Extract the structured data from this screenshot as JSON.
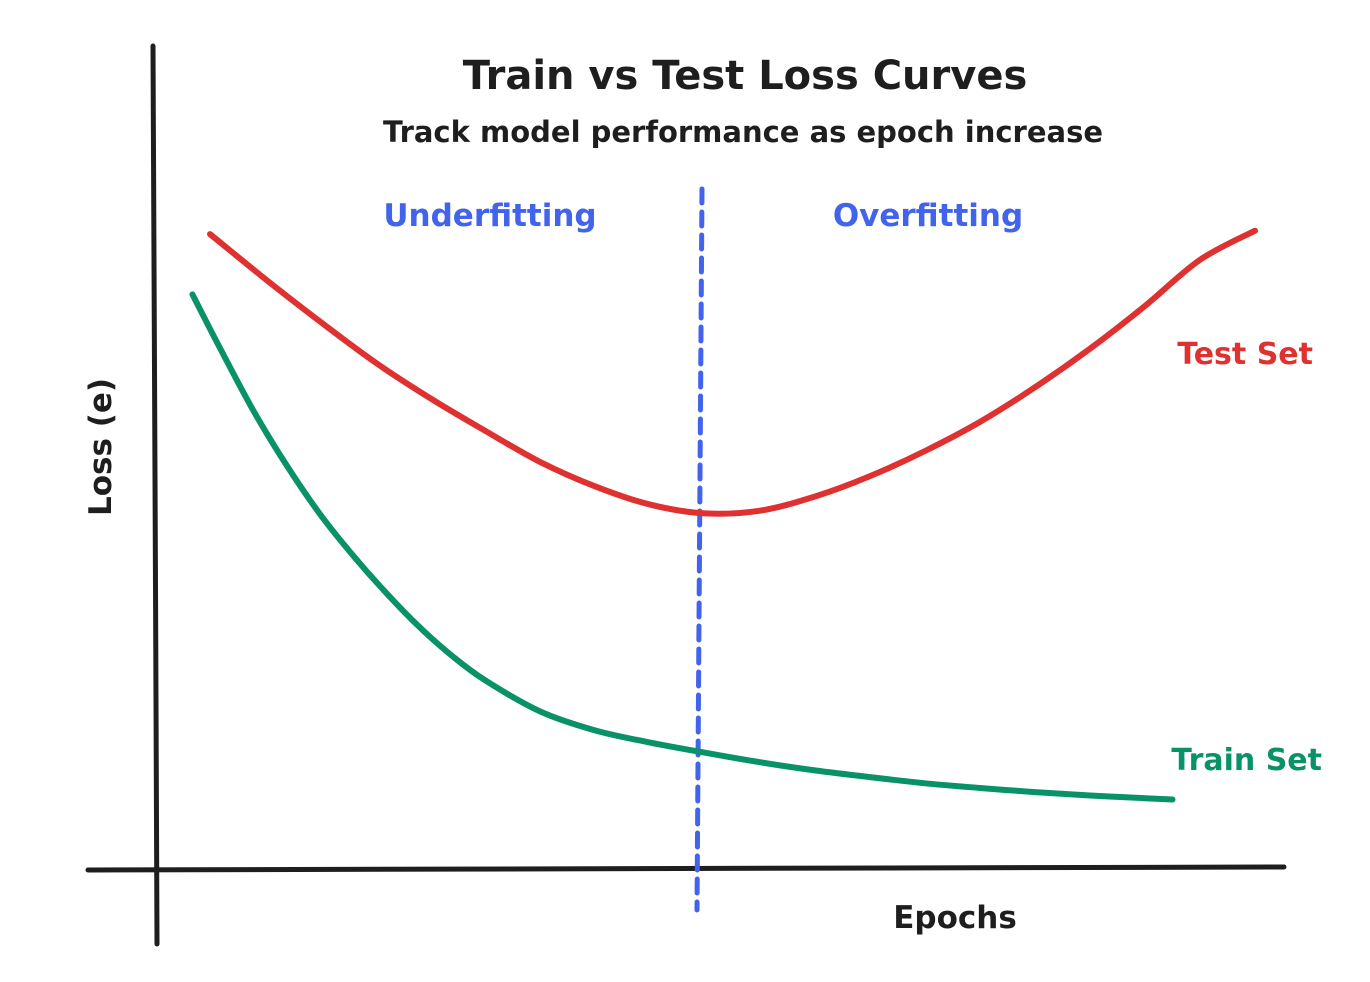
{
  "chart_data": {
    "type": "line",
    "title": "Train vs Test Loss Curves",
    "subtitle": "Track model performance as epoch increase",
    "xlabel": "Epochs",
    "ylabel": "Loss (e)",
    "xlim": [
      0,
      100
    ],
    "ylim": [
      0,
      100
    ],
    "grid": false,
    "series": [
      {
        "name": "Test Set",
        "color": "#e03131",
        "x": [
          5,
          10,
          15,
          20,
          25,
          30,
          35,
          40,
          45,
          50,
          55,
          60,
          65,
          70,
          75,
          80,
          85,
          90,
          95,
          100
        ],
        "values": [
          93.5,
          86.9,
          80.6,
          74.6,
          69.3,
          64.5,
          59.9,
          56.3,
          53.6,
          52.3,
          52.7,
          54.8,
          57.8,
          61.5,
          65.8,
          70.9,
          76.6,
          82.9,
          89.7,
          94.0
        ]
      },
      {
        "name": "Train Set",
        "color": "#099268",
        "x": [
          3.4,
          6,
          9,
          12,
          15,
          18,
          21,
          24,
          27,
          30,
          35,
          40,
          45,
          50,
          55,
          60,
          65,
          70,
          75,
          80,
          85,
          90,
          92.5
        ],
        "values": [
          84.6,
          76.4,
          67.3,
          59.3,
          52.2,
          46.1,
          40.6,
          35.6,
          31.3,
          27.7,
          23.1,
          20.3,
          18.5,
          17.0,
          15.6,
          14.4,
          13.4,
          12.5,
          11.8,
          11.2,
          10.7,
          10.3,
          10.1
        ]
      }
    ],
    "divider": {
      "x": 50,
      "color": "#4263eb",
      "left_label": "Underfitting",
      "right_label": "Overfitting"
    }
  }
}
